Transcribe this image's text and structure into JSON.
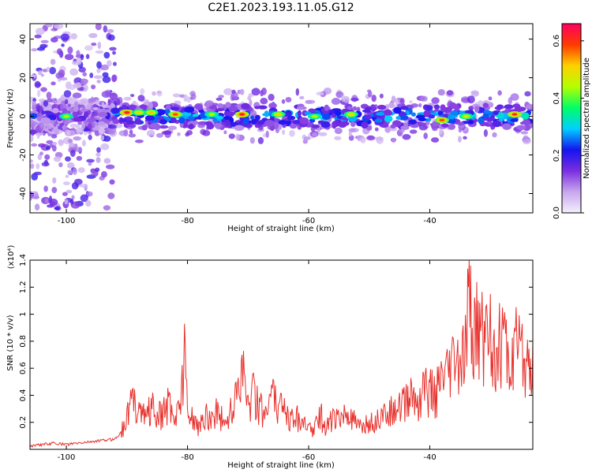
{
  "title": "C2E1.2023.193.11.05.G12",
  "colors": {
    "snr_line": "#e8312c",
    "spectrogram_core": "#2e1fd6",
    "spectrogram_fringe": "#b07be6"
  },
  "chart_data": [
    {
      "type": "heatmap",
      "name": "spectrogram",
      "xlabel": "Height of straight line (km)",
      "ylabel": "Frequency (Hz)",
      "xlim": [
        -106,
        -23
      ],
      "ylim": [
        -50,
        48
      ],
      "x_ticks": [
        -100,
        -80,
        -60,
        -40
      ],
      "y_ticks": [
        -40,
        -20,
        0,
        20,
        40
      ],
      "grid": false,
      "colorbar": {
        "label": "Normalized spectral amplitude",
        "range": [
          0,
          0.66
        ],
        "ticks": [
          0.0,
          0.2,
          0.4,
          0.6
        ],
        "colormap": [
          "#f4f0fb",
          "#c7a6ee",
          "#7a2ee0",
          "#1414f0",
          "#00cfff",
          "#00ff66",
          "#b4ff00",
          "#ffd000",
          "#ff3a00",
          "#ff0060"
        ]
      },
      "bands": [
        {
          "x": [
            -106,
            -92
          ],
          "center_hz": 0,
          "half_width_hz": 4,
          "amplitude": 0.22
        },
        {
          "x": [
            -92,
            -23
          ],
          "center_hz": 0,
          "half_width_hz": 6,
          "amplitude": 0.3
        },
        {
          "x": [
            -106,
            -92
          ],
          "center_hz": 0,
          "half_width_hz": 48,
          "amplitude": 0.1
        }
      ],
      "peaks": [
        {
          "x": -100,
          "hz": 0,
          "amplitude": 0.45
        },
        {
          "x": -90,
          "hz": 2,
          "amplitude": 0.62
        },
        {
          "x": -88,
          "hz": 2,
          "amplitude": 0.5
        },
        {
          "x": -86,
          "hz": 2,
          "amplitude": 0.52
        },
        {
          "x": -82,
          "hz": 1,
          "amplitude": 0.58
        },
        {
          "x": -76,
          "hz": 1,
          "amplitude": 0.45
        },
        {
          "x": -71,
          "hz": 1,
          "amplitude": 0.62
        },
        {
          "x": -65,
          "hz": 1,
          "amplitude": 0.5
        },
        {
          "x": -59,
          "hz": 0,
          "amplitude": 0.45
        },
        {
          "x": -53,
          "hz": 1,
          "amplitude": 0.5
        },
        {
          "x": -38,
          "hz": -2,
          "amplitude": 0.58
        },
        {
          "x": -34,
          "hz": 0,
          "amplitude": 0.48
        },
        {
          "x": -26,
          "hz": 1,
          "amplitude": 0.6
        }
      ]
    },
    {
      "type": "line",
      "name": "snr",
      "xlabel": "Height of straight line (km)",
      "ylabel": "SNR (10 * v/v)",
      "y_multiplier": "(x10⁴)",
      "xlim": [
        -106,
        -23
      ],
      "ylim": [
        0,
        1.4
      ],
      "x_ticks": [
        -100,
        -80,
        -60,
        -40
      ],
      "y_ticks": [
        0.2,
        0.4,
        0.6,
        0.8,
        1.0,
        1.2,
        1.4
      ],
      "grid": false,
      "series": [
        {
          "x": [
            -106,
            -104,
            -102,
            -100,
            -98,
            -96,
            -94,
            -92,
            -91,
            -90,
            -89,
            -88,
            -87,
            -86,
            -85,
            -84,
            -83,
            -82,
            -81,
            -80.5,
            -80,
            -79,
            -78,
            -77,
            -76,
            -75,
            -74,
            -73,
            -72,
            -71,
            -70,
            -69,
            -68,
            -67,
            -66,
            -65,
            -64,
            -63,
            -62,
            -61,
            -60,
            -59,
            -58,
            -57,
            -56,
            -55,
            -54,
            -53,
            -52,
            -51,
            -50,
            -49,
            -48,
            -47,
            -46,
            -45,
            -44,
            -43,
            -42,
            -41,
            -40,
            -39,
            -38,
            -37,
            -36,
            -35,
            -34,
            -33.5,
            -33,
            -32,
            -31,
            -30,
            -29,
            -28,
            -27,
            -26,
            -25,
            -24,
            -23
          ],
          "y": [
            0.03,
            0.04,
            0.05,
            0.04,
            0.05,
            0.06,
            0.07,
            0.08,
            0.13,
            0.3,
            0.45,
            0.35,
            0.3,
            0.38,
            0.28,
            0.32,
            0.42,
            0.25,
            0.5,
            0.93,
            0.3,
            0.25,
            0.2,
            0.3,
            0.28,
            0.35,
            0.22,
            0.3,
            0.5,
            0.7,
            0.4,
            0.52,
            0.35,
            0.3,
            0.45,
            0.33,
            0.38,
            0.28,
            0.3,
            0.22,
            0.18,
            0.2,
            0.3,
            0.18,
            0.3,
            0.25,
            0.28,
            0.3,
            0.18,
            0.2,
            0.22,
            0.25,
            0.3,
            0.28,
            0.35,
            0.42,
            0.4,
            0.48,
            0.4,
            0.55,
            0.5,
            0.48,
            0.6,
            0.62,
            0.75,
            0.7,
            0.85,
            1.4,
            0.9,
            1.1,
            0.95,
            1.15,
            0.75,
            1.05,
            0.7,
            0.9,
            0.8,
            0.65,
            0.8
          ]
        }
      ]
    }
  ]
}
